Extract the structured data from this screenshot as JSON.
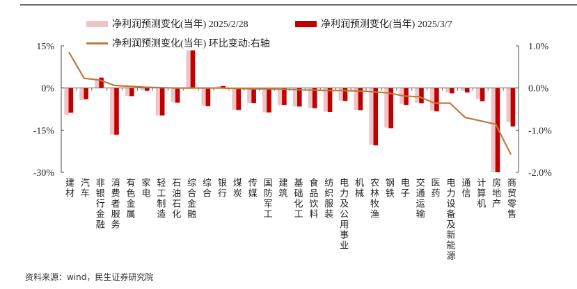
{
  "chart_data": {
    "type": "bar",
    "title": "",
    "categories": [
      "建材",
      "汽车",
      "非银行金融",
      "消费者服务",
      "有色金属",
      "家电",
      "轻工制造",
      "石油石化",
      "综合金融",
      "综合",
      "银行",
      "煤炭",
      "传媒",
      "国防军工",
      "建筑",
      "基础化工",
      "食品饮料",
      "纺织服装",
      "电力及公用事业",
      "机械",
      "农林牧渔",
      "钢铁",
      "电子",
      "交通运输",
      "医药",
      "电力设备及新能源",
      "通信",
      "计算机",
      "房地产",
      "商贸零售"
    ],
    "series": [
      {
        "name": "净利润预测变化(当年) 2025/2/28",
        "type": "bar",
        "axis": "left",
        "color": "#f0c4c6",
        "values": [
          -9.6,
          -4.3,
          2.9,
          -16.6,
          -2.9,
          -0.9,
          -9.8,
          -5.1,
          13.4,
          -6.3,
          0.7,
          -7.8,
          -5.3,
          -8.6,
          -6.1,
          -6.6,
          -7.1,
          -8.4,
          -4.5,
          -7.8,
          -20.2,
          -14.1,
          -5.7,
          -5.2,
          -8.0,
          -1.6,
          -1.0,
          -3.9,
          -30.0,
          -12.2
        ]
      },
      {
        "name": "净利润预测变化(当年) 2025/3/7",
        "type": "bar",
        "axis": "left",
        "color": "#c00000",
        "values": [
          -8.8,
          -4.0,
          3.7,
          -16.6,
          -2.9,
          -1.0,
          -9.8,
          -5.2,
          13.4,
          -6.5,
          0.7,
          -7.8,
          -5.3,
          -8.7,
          -6.0,
          -6.6,
          -7.2,
          -8.5,
          -4.6,
          -7.9,
          -20.4,
          -14.3,
          -6.0,
          -5.4,
          -8.3,
          -1.9,
          -1.6,
          -4.7,
          -30.0,
          -13.7
        ]
      },
      {
        "name": "净利润预测变化(当年) 环比变动:右轴",
        "type": "line",
        "axis": "right",
        "color": "#c0783c",
        "values": [
          0.85,
          0.23,
          0.19,
          0.06,
          0.04,
          0.02,
          0.01,
          0.0,
          0.0,
          0.0,
          0.0,
          -0.01,
          -0.02,
          -0.02,
          -0.03,
          -0.04,
          -0.05,
          -0.06,
          -0.06,
          -0.07,
          -0.09,
          -0.12,
          -0.19,
          -0.21,
          -0.36,
          -0.36,
          -0.7,
          -0.78,
          -0.86,
          -1.58
        ]
      }
    ],
    "y_left": {
      "range": [
        -30,
        15
      ],
      "ticks": [
        15,
        0,
        -15,
        -30
      ],
      "tick_labels": [
        "15%",
        "0%",
        "-15%",
        "-30%"
      ]
    },
    "y_right": {
      "range": [
        -2.0,
        1.0
      ],
      "ticks": [
        1.0,
        0.0,
        -1.0,
        -2.0
      ],
      "tick_labels": [
        "1.0%",
        "0.0%",
        "-1.0%",
        "-2.0%"
      ]
    },
    "grid": false,
    "legend_placement": "top"
  },
  "source": "资料来源：wind，民生证券研究院"
}
